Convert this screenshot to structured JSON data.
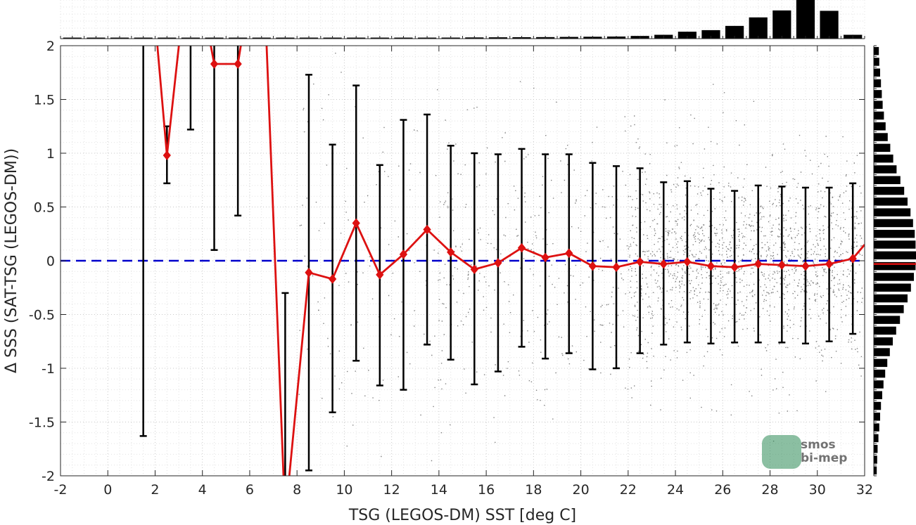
{
  "chart_data": {
    "type": "scatter",
    "title": "",
    "xlabel": "TSG (LEGOS-DM) SST [deg C]",
    "ylabel": "Δ SSS (SAT-TSG (LEGOS-DM))",
    "xlim": [
      -2,
      32
    ],
    "ylim": [
      -2,
      2
    ],
    "xticks": [
      -2,
      0,
      2,
      4,
      6,
      8,
      10,
      12,
      14,
      16,
      18,
      20,
      22,
      24,
      26,
      28,
      30,
      32
    ],
    "yticks": [
      -2,
      -1.5,
      -1,
      -0.5,
      0,
      0.5,
      1,
      1.5,
      2
    ],
    "ytick_labels": [
      "-2",
      "-1.5",
      "-1",
      "-0.5",
      "0",
      "0.5",
      "1",
      "1.5",
      "2"
    ],
    "grid": true,
    "reference_line": {
      "y": 0,
      "style": "dashed",
      "color": "#0000cc"
    },
    "scatter_color": "#808080",
    "mean_line_color": "#dd1111",
    "errorbar_color": "#000000",
    "bin_centers": [
      1.5,
      2.5,
      3.5,
      4.5,
      5.5,
      6.5,
      7.5,
      8.5,
      9.5,
      10.5,
      11.5,
      12.5,
      13.5,
      14.5,
      15.5,
      16.5,
      17.5,
      18.5,
      19.5,
      20.5,
      21.5,
      22.5,
      23.5,
      24.5,
      25.5,
      26.5,
      27.5,
      28.5,
      29.5,
      30.5,
      31.5
    ],
    "mean": [
      3.5,
      0.98,
      3.0,
      1.83,
      1.83,
      3.2,
      -2.4,
      -0.11,
      -0.17,
      0.35,
      -0.13,
      0.06,
      0.29,
      0.08,
      -0.08,
      -0.02,
      0.12,
      0.03,
      0.07,
      -0.05,
      -0.06,
      -0.01,
      -0.03,
      -0.01,
      -0.05,
      -0.06,
      -0.03,
      -0.04,
      -0.05,
      -0.03,
      0.02
    ],
    "markers_shown": [
      false,
      true,
      false,
      true,
      true,
      false,
      false,
      true,
      true,
      true,
      true,
      true,
      true,
      true,
      true,
      true,
      true,
      true,
      true,
      true,
      true,
      true,
      true,
      true,
      true,
      true,
      true,
      true,
      true,
      true,
      true
    ],
    "err_low": [
      -1.63,
      0.72,
      1.22,
      0.1,
      0.42,
      null,
      -2.5,
      -1.95,
      -1.41,
      -0.93,
      -1.16,
      -1.2,
      -0.78,
      -0.92,
      -1.15,
      -1.03,
      -0.8,
      -0.91,
      -0.86,
      -1.01,
      -1.0,
      -0.86,
      -0.78,
      -0.76,
      -0.77,
      -0.76,
      -0.76,
      -0.76,
      -0.77,
      -0.75,
      -0.68
    ],
    "err_high": [
      2.5,
      1.25,
      2.5,
      2.5,
      2.5,
      null,
      -0.3,
      1.73,
      1.08,
      1.63,
      0.89,
      1.31,
      1.36,
      1.07,
      1.0,
      0.99,
      1.04,
      0.99,
      0.99,
      0.91,
      0.88,
      0.86,
      0.73,
      0.74,
      0.67,
      0.65,
      0.7,
      0.69,
      0.68,
      0.68,
      0.72
    ],
    "mean_line_end": {
      "x": 32.0,
      "y": 0.15
    },
    "top_histogram": {
      "orientation": "vertical",
      "bins": [
        -1.5,
        -0.5,
        0.5,
        1.5,
        2.5,
        3.5,
        4.5,
        5.5,
        6.5,
        7.5,
        8.5,
        9.5,
        10.5,
        11.5,
        12.5,
        13.5,
        14.5,
        15.5,
        16.5,
        17.5,
        18.5,
        19.5,
        20.5,
        21.5,
        22.5,
        23.5,
        24.5,
        25.5,
        26.5,
        27.5,
        28.5,
        29.5,
        30.5,
        31.5
      ],
      "relative_counts": [
        0.005,
        0.005,
        0.005,
        0.005,
        0.005,
        0.005,
        0.005,
        0.005,
        0.005,
        0.005,
        0.005,
        0.005,
        0.008,
        0.012,
        0.018,
        0.025,
        0.028,
        0.032,
        0.035,
        0.038,
        0.04,
        0.045,
        0.05,
        0.055,
        0.07,
        0.1,
        0.18,
        0.22,
        0.33,
        0.55,
        0.73,
        1.0,
        0.72,
        0.1
      ]
    },
    "right_histogram": {
      "orientation": "horizontal",
      "bins": [
        1.95,
        1.85,
        1.75,
        1.65,
        1.55,
        1.45,
        1.35,
        1.25,
        1.15,
        1.05,
        0.95,
        0.85,
        0.75,
        0.65,
        0.55,
        0.45,
        0.35,
        0.25,
        0.15,
        0.05,
        -0.05,
        -0.15,
        -0.25,
        -0.35,
        -0.45,
        -0.55,
        -0.65,
        -0.75,
        -0.85,
        -0.95,
        -1.05,
        -1.15,
        -1.25,
        -1.35,
        -1.45,
        -1.55,
        -1.65,
        -1.75,
        -1.85,
        -1.95
      ],
      "relative_counts": [
        0.12,
        0.13,
        0.15,
        0.17,
        0.19,
        0.21,
        0.24,
        0.28,
        0.33,
        0.39,
        0.46,
        0.54,
        0.63,
        0.72,
        0.8,
        0.87,
        0.93,
        0.97,
        0.99,
        1.0,
        0.99,
        0.95,
        0.88,
        0.8,
        0.71,
        0.62,
        0.53,
        0.45,
        0.38,
        0.32,
        0.27,
        0.23,
        0.2,
        0.17,
        0.15,
        0.13,
        0.11,
        0.09,
        0.08,
        0.07
      ],
      "median_line": {
        "y": -0.03,
        "color": "#dd1111"
      }
    },
    "watermark": {
      "line1": "smos",
      "line2": "bi-mep",
      "color": "#2e8b57"
    }
  }
}
